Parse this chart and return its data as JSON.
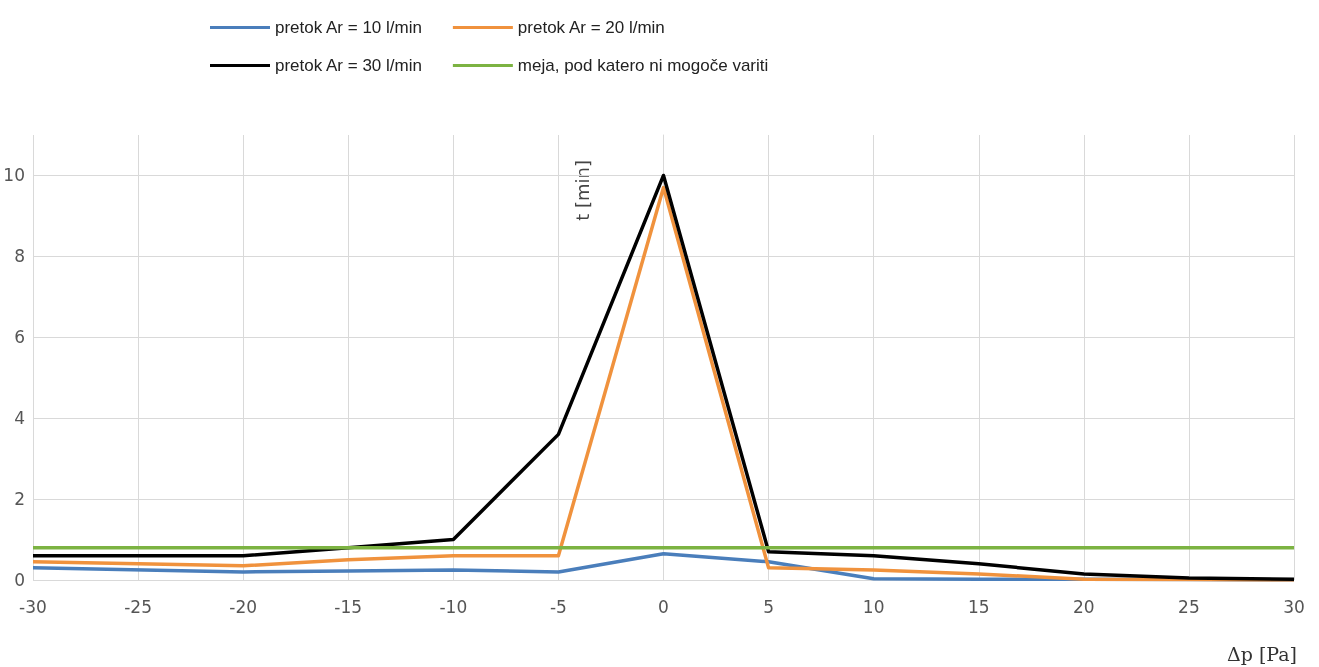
{
  "chart_data": {
    "type": "line",
    "xlabel": "Δp [Pa]",
    "ylabel": "t [min]",
    "x": [
      -30,
      -20,
      -15,
      -10,
      -5,
      0,
      5,
      10,
      15,
      20,
      25,
      30
    ],
    "series": [
      {
        "name": "pretok Ar = 10 l/min",
        "color": "#4a7ebb",
        "values": [
          0.3,
          0.2,
          0.22,
          0.25,
          0.2,
          0.65,
          0.45,
          0.03,
          0.02,
          0.02,
          0.01,
          0
        ]
      },
      {
        "name": "pretok Ar = 20 l/min",
        "color": "#f0923d",
        "values": [
          0.45,
          0.35,
          0.5,
          0.6,
          0.6,
          9.7,
          0.3,
          0.25,
          0.15,
          0.02,
          0.01,
          0
        ]
      },
      {
        "name": "pretok Ar = 30 l/min",
        "color": "#000000",
        "values": [
          0.6,
          0.6,
          0.8,
          1.0,
          3.6,
          10,
          0.7,
          0.6,
          0.4,
          0.15,
          0.05,
          0.02
        ]
      },
      {
        "name": "meja, pod katero ni mogoče variti",
        "color": "#7cb342",
        "x": [
          -30,
          30
        ],
        "values": [
          0.8,
          0.8
        ]
      }
    ],
    "xlim": [
      -30,
      30
    ],
    "xticks": [
      -30,
      -25,
      -20,
      -15,
      -10,
      -5,
      0,
      5,
      10,
      15,
      20,
      25,
      30
    ],
    "ylim": [
      0,
      11
    ],
    "yticks": [
      0,
      2,
      4,
      6,
      8,
      10
    ],
    "grid": true,
    "legend": "top",
    "marker": "none",
    "line_style": "solid"
  }
}
